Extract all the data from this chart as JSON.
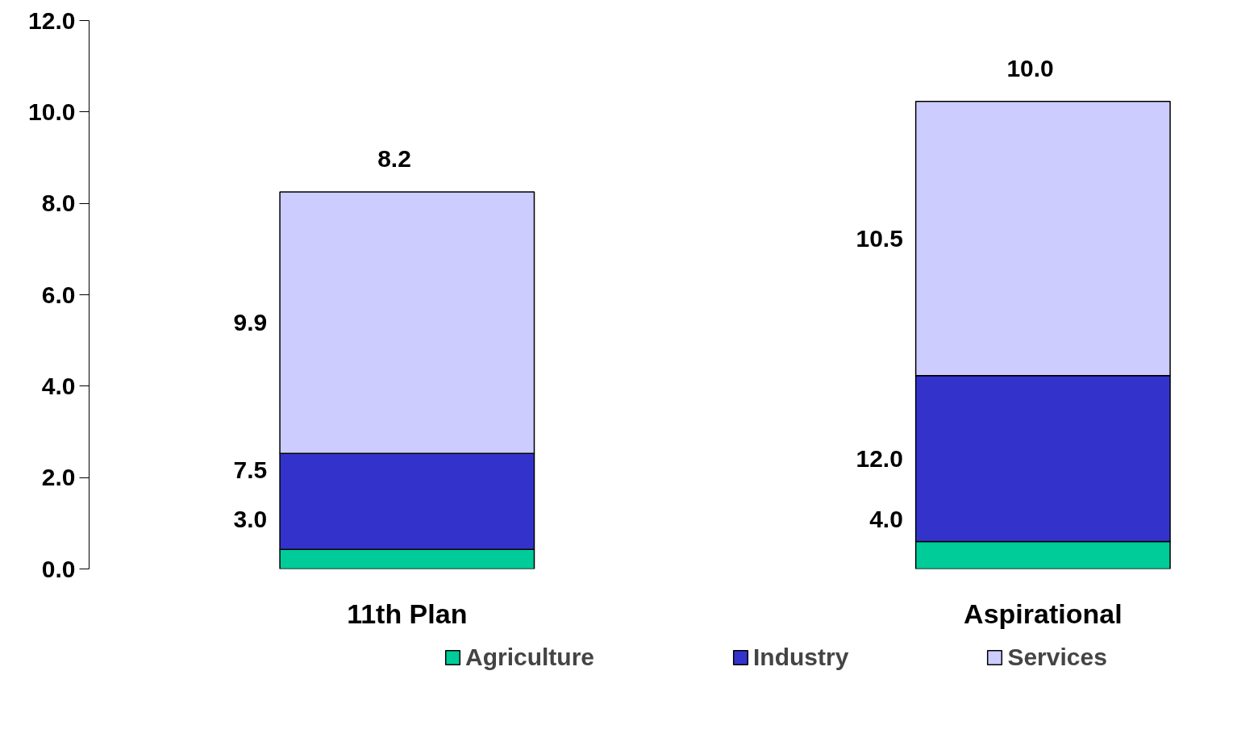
{
  "chart_data": {
    "type": "bar",
    "stacked": true,
    "categories": [
      "11th Plan",
      "Aspirational"
    ],
    "series": [
      {
        "name": "Agriculture",
        "color": "#00cc99",
        "values": [
          0.43,
          0.6
        ]
      },
      {
        "name": "Industry",
        "color": "#3333cc",
        "values": [
          2.1,
          3.63
        ]
      },
      {
        "name": "Services",
        "color": "#ccccff",
        "values": [
          5.72,
          6.0
        ]
      }
    ],
    "ylim": [
      0,
      12
    ],
    "yticks": [
      {
        "value": 0,
        "label": "0.0"
      },
      {
        "value": 2,
        "label": "2.0"
      },
      {
        "value": 4,
        "label": "4.0"
      },
      {
        "value": 6,
        "label": "6.0"
      },
      {
        "value": 8,
        "label": "8.0"
      },
      {
        "value": 10,
        "label": "10.0"
      },
      {
        "value": 12,
        "label": "12.0"
      }
    ],
    "grid": false,
    "legend": "bottom",
    "annotations": [
      "8.2",
      "9.9",
      "7.5",
      "3.0",
      "10.0",
      "10.5",
      "12.0",
      "4.0"
    ]
  }
}
